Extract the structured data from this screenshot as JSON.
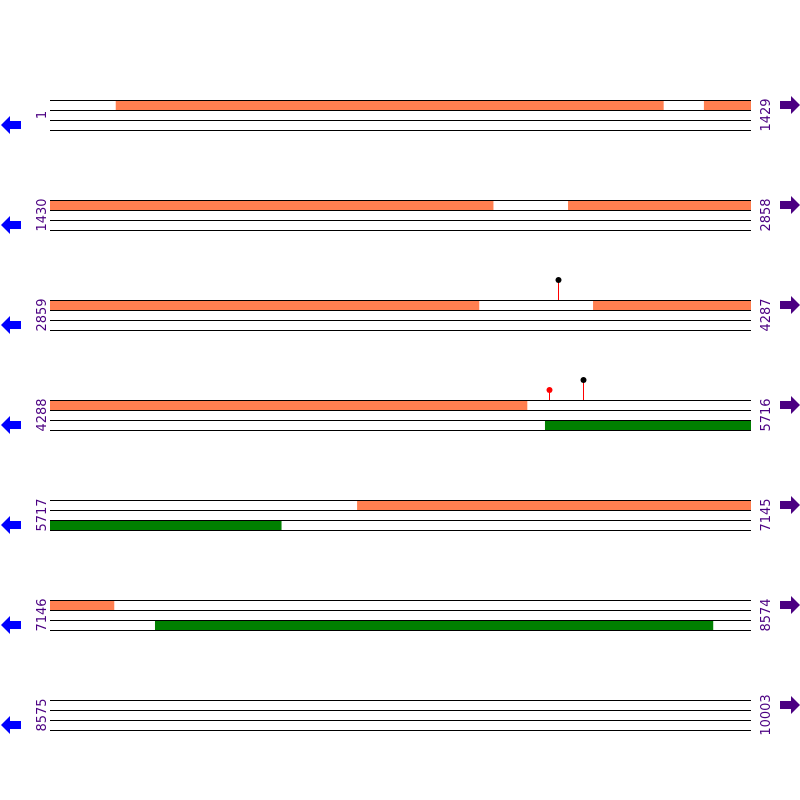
{
  "colors": {
    "top_feature": "#ff7f50",
    "bottom_feature": "#008000",
    "label": "#4b0082",
    "left_arrow": "#0000ff",
    "right_arrow": "#4b0082",
    "stem": "#ff0000"
  },
  "rows": [
    {
      "start": "1",
      "end": "1429",
      "s": 1,
      "e": 1429,
      "top": [
        [
          135,
          1251
        ],
        [
          1334,
          1429
        ]
      ],
      "bottom": [],
      "markers": []
    },
    {
      "start": "1430",
      "end": "2858",
      "s": 1430,
      "e": 2858,
      "top": [
        [
          1430,
          2333
        ],
        [
          2486,
          2858
        ]
      ],
      "bottom": [],
      "markers": []
    },
    {
      "start": "2859",
      "end": "4287",
      "s": 2859,
      "e": 4287,
      "top": [
        [
          2859,
          3733
        ],
        [
          3966,
          4287
        ]
      ],
      "bottom": [],
      "markers": [
        {
          "pos": 3895,
          "color": "#000000",
          "level": 2
        }
      ]
    },
    {
      "start": "4288",
      "end": "5716",
      "s": 4288,
      "e": 5716,
      "top": [
        [
          4288,
          5260
        ]
      ],
      "bottom": [
        [
          5297,
          5716
        ]
      ],
      "markers": [
        {
          "pos": 5305,
          "color": "#ff0000",
          "level": 1
        },
        {
          "pos": 5375,
          "color": "#000000",
          "level": 2
        }
      ]
    },
    {
      "start": "5717",
      "end": "7145",
      "s": 5717,
      "e": 7145,
      "top": [
        [
          6343,
          7145
        ]
      ],
      "bottom": [
        [
          5717,
          6188
        ]
      ],
      "markers": []
    },
    {
      "start": "7146",
      "end": "8574",
      "s": 7146,
      "e": 8574,
      "top": [
        [
          7146,
          7276
        ]
      ],
      "bottom": [
        [
          7360,
          8497
        ]
      ],
      "markers": []
    },
    {
      "start": "8575",
      "end": "10003",
      "s": 8575,
      "e": 10003,
      "top": [],
      "bottom": [],
      "markers": []
    }
  ]
}
